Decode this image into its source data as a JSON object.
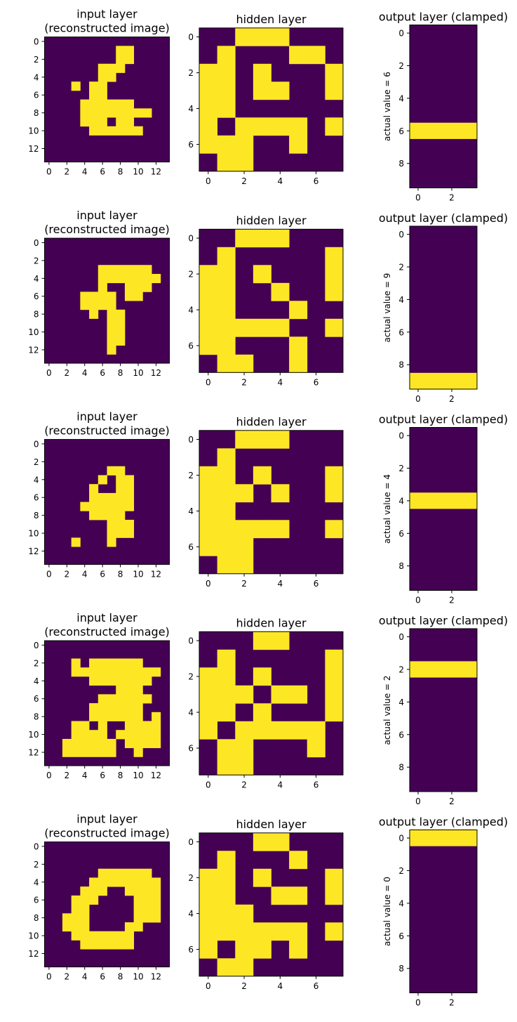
{
  "chart_data": {
    "type": "heatmap",
    "colors": {
      "low": "#440154",
      "high": "#fde725",
      "frame": "#000000",
      "text": "#000000"
    },
    "panel_titles": {
      "input": [
        "input layer",
        "(reconstructed image)"
      ],
      "hidden": "hidden layer",
      "output": "output layer (clamped)"
    },
    "ticks": {
      "input": [
        "0",
        "2",
        "4",
        "6",
        "8",
        "10",
        "12"
      ],
      "hidden": [
        "0",
        "2",
        "4",
        "6"
      ],
      "output_y": [
        "0",
        "2",
        "4",
        "6",
        "8"
      ],
      "output_x": [
        "0",
        "2"
      ]
    },
    "rows": [
      {
        "output_ylabel": "actual value = 6",
        "active_output": 6,
        "input": [
          "..............",
          "........##....",
          "........##....",
          "......###.....",
          "......##......",
          "...#.##.......",
          ".....##.......",
          "....######....",
          "....########..",
          "....###.##....",
          ".....######...",
          "..............",
          "..............",
          ".............."
        ],
        "hidden": [
          "..###...",
          ".#...##.",
          "##.#...#",
          "##.##..#",
          "##......",
          "#.####.#",
          "###..#..",
          ".##....."
        ]
      },
      {
        "output_ylabel": "actual value = 9",
        "active_output": 9,
        "input": [
          "..............",
          "..............",
          "..............",
          "......######..",
          "......#######.",
          "......#..###..",
          "....####.##...",
          "....####......",
          ".....#.##.....",
          ".......##.....",
          ".......##.....",
          ".......##.....",
          ".......#......",
          ".............."
        ],
        "hidden": [
          "..###...",
          ".#.....#",
          "##.#...#",
          "##..#..#",
          "##...#..",
          "#####..#",
          "##...#..",
          ".##..#.."
        ]
      },
      {
        "output_ylabel": "actual value = 4",
        "active_output": 4,
        "input": [
          "..............",
          "..............",
          "..............",
          ".......##.....",
          "......#.##....",
          ".....#..##....",
          ".....#####....",
          "....######....",
          ".....####.....",
          ".......###....",
          ".......###....",
          "...#...#......",
          "..............",
          ".............."
        ],
        "hidden": [
          "..###...",
          ".#......",
          "##.#...#",
          "###.#..#",
          "##......",
          "#####..#",
          "###.....",
          ".##....."
        ]
      },
      {
        "output_ylabel": "actual value = 2",
        "active_output": 2,
        "input": [
          "..............",
          "..............",
          "...#.######...",
          "...##########.",
          ".....#######..",
          "........###...",
          "......######..",
          ".....######...",
          ".....######.#.",
          "...##.#..####.",
          "...####.#####.",
          "..######.####.",
          "..######..#...",
          ".............."
        ],
        "hidden": [
          "...##...",
          ".#.....#",
          "##.#...#",
          "###.##.#",
          "##.#...#",
          "#.#####.",
          ".##...#.",
          ".##....."
        ]
      },
      {
        "output_ylabel": "actual value = 0",
        "active_output": 0,
        "input": [
          "..............",
          "..............",
          "..............",
          "......######..",
          ".....########.",
          "....###..####.",
          "...###....###.",
          "...##.....###.",
          "..###.....###.",
          "..###....##...",
          "...#######....",
          "....######....",
          "..............",
          ".............."
        ],
        "hidden": [
          "...##...",
          ".#...#..",
          "##.#...#",
          "##..##.#",
          "###.....",
          "######.#",
          "#.##.#..",
          ".##....."
        ]
      }
    ]
  }
}
